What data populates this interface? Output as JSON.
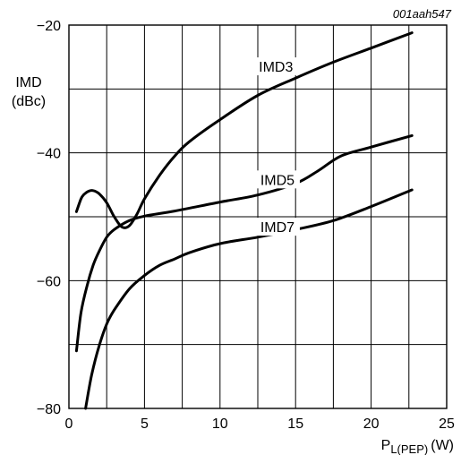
{
  "chart_data": {
    "type": "line",
    "figure_id": "001aah547",
    "ylabel_line1": "IMD",
    "ylabel_line2": "(dBc)",
    "xlabel_main": "P",
    "xlabel_sub": "L(PEP)",
    "xlabel_unit": "(W)",
    "xlim": [
      0,
      25
    ],
    "ylim": [
      -80,
      -20
    ],
    "x_ticks": [
      0,
      5,
      10,
      15,
      20,
      25
    ],
    "y_ticks": [
      -80,
      -60,
      -40,
      -20
    ],
    "grid": true,
    "x_grid_step": 2.5,
    "y_grid_step": 10,
    "series": [
      {
        "name": "IMD3",
        "label_at": [
          13.7,
          -26.6
        ],
        "x": [
          0.5,
          0.8,
          1.0,
          1.3,
          1.6,
          2.0,
          2.5,
          3.0,
          3.5,
          4.0,
          4.5,
          5.0,
          6.0,
          7.0,
          8.0,
          10.0,
          12.5,
          15.0,
          17.5,
          20.0,
          22.7
        ],
        "y": [
          -49.2,
          -47.2,
          -46.5,
          -46.0,
          -45.9,
          -46.4,
          -47.8,
          -50.0,
          -51.6,
          -51.4,
          -49.6,
          -47.2,
          -43.5,
          -40.5,
          -38.2,
          -34.8,
          -31.0,
          -28.3,
          -25.8,
          -23.6,
          -21.2
        ]
      },
      {
        "name": "IMD5",
        "label_at": [
          13.8,
          -44.3
        ],
        "x": [
          0.5,
          0.8,
          1.2,
          1.6,
          2.0,
          2.5,
          3.0,
          4.0,
          5.0,
          7.0,
          10.0,
          12.5,
          15.0,
          16.5,
          18.0,
          20.0,
          22.7
        ],
        "y": [
          -71.0,
          -65.0,
          -60.8,
          -57.6,
          -55.4,
          -53.2,
          -52.0,
          -50.6,
          -49.9,
          -49.1,
          -47.7,
          -46.6,
          -44.8,
          -42.8,
          -40.5,
          -39.1,
          -37.3
        ]
      },
      {
        "name": "IMD7",
        "label_at": [
          13.8,
          -51.7
        ],
        "x": [
          1.1,
          1.5,
          2.0,
          2.5,
          3.0,
          4.0,
          5.0,
          6.0,
          7.0,
          8.0,
          10.0,
          12.5,
          15.0,
          17.5,
          20.0,
          22.7
        ],
        "y": [
          -80.0,
          -74.8,
          -70.2,
          -66.8,
          -64.6,
          -61.3,
          -59.2,
          -57.6,
          -56.6,
          -55.6,
          -54.2,
          -53.2,
          -52.0,
          -50.6,
          -48.4,
          -45.8
        ]
      }
    ]
  }
}
